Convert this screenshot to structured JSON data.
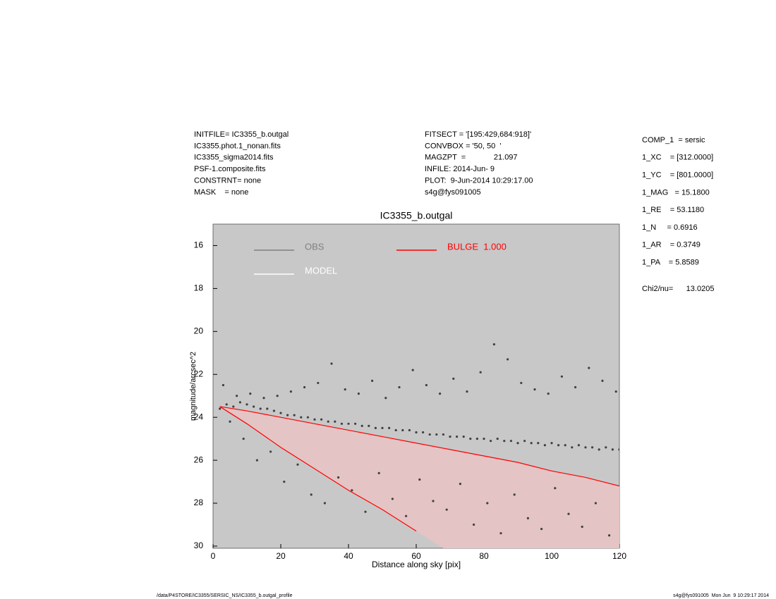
{
  "header": {
    "left": [
      "INITFILE= IC3355_b.outgal",
      "IC3355.phot.1_nonan.fits",
      "IC3355_sigma2014.fits",
      "PSF-1.composite.fits",
      "CONSTRNT= none",
      "MASK    = none"
    ],
    "middle": [
      "FITSECT = '[195:429,684:918]'",
      "CONVBOX = '50, 50  '",
      "MAGZPT  =             21.097",
      "INFILE: 2014-Jun- 9",
      "PLOT:  9-Jun-2014 10:29:17.00",
      "s4g@fys091005"
    ],
    "right": [
      "COMP_1  = sersic",
      "1_XC    = [312.0000]",
      "1_YC    = [801.0000]",
      "1_MAG   = 15.1800",
      "1_RE    = 53.1180",
      "1_N     = 0.6916",
      "1_AR    = 0.3749",
      "1_PA    = 5.8589"
    ],
    "chi": "Chi2/nu=      13.0205"
  },
  "footer": {
    "left": "/data/P4STORE/IC3355/SERSIC_NS/IC3355_b.outgal_profile",
    "right": "s4g@fys091005  Mon Jun  9 10:29:17 2014"
  },
  "chart_data": {
    "type": "scatter",
    "title": "IC3355_b.outgal",
    "xlabel": "Distance along sky [pix]",
    "ylabel": "magnitude/arcsec^2",
    "xlim": [
      0,
      120
    ],
    "xticks": [
      0,
      20,
      40,
      60,
      80,
      100,
      120
    ],
    "ylim": [
      15,
      30.1
    ],
    "y_inverted": true,
    "yticks": [
      16,
      18,
      20,
      22,
      24,
      26,
      28,
      30
    ],
    "background": "#c8c8c8",
    "legend": [
      {
        "name": "OBS",
        "color": "#808080"
      },
      {
        "name": "MODEL",
        "color": "#ffffff"
      },
      {
        "name": "BULGE  1.000",
        "color": "#ff0000"
      }
    ],
    "series": [
      {
        "color": "#404040",
        "x": [
          2,
          4,
          6,
          8,
          10,
          12,
          14,
          16,
          18,
          20,
          22,
          24,
          26,
          28,
          30,
          32,
          34,
          36,
          38,
          40,
          42,
          44,
          46,
          48,
          50,
          52,
          54,
          56,
          58,
          60,
          62,
          64,
          66,
          68,
          70,
          72,
          74,
          76,
          78,
          80,
          82,
          84,
          86,
          88,
          90,
          92,
          94,
          96,
          98,
          100,
          102,
          104,
          106,
          108,
          110,
          112,
          114,
          116,
          118,
          120,
          3,
          7,
          11,
          15,
          19,
          23,
          27,
          31,
          35,
          39,
          43,
          47,
          51,
          55,
          59,
          63,
          67,
          71,
          75,
          79,
          83,
          87,
          91,
          95,
          99,
          103,
          107,
          111,
          115,
          119,
          5,
          9,
          13,
          17,
          21,
          25,
          29,
          33,
          37,
          41,
          45,
          49,
          53,
          57,
          61,
          65,
          69,
          73,
          77,
          81,
          85,
          89,
          93,
          97,
          101,
          105,
          109,
          113,
          117
        ],
        "values": [
          23.6,
          23.4,
          23.5,
          23.3,
          23.4,
          23.5,
          23.6,
          23.6,
          23.7,
          23.8,
          23.9,
          23.9,
          24.0,
          24.0,
          24.1,
          24.1,
          24.2,
          24.2,
          24.3,
          24.3,
          24.3,
          24.4,
          24.4,
          24.5,
          24.5,
          24.5,
          24.6,
          24.6,
          24.6,
          24.7,
          24.7,
          24.8,
          24.8,
          24.8,
          24.9,
          24.9,
          24.9,
          25.0,
          25.0,
          25.0,
          25.1,
          25.0,
          25.1,
          25.1,
          25.2,
          25.1,
          25.2,
          25.2,
          25.3,
          25.2,
          25.3,
          25.3,
          25.4,
          25.3,
          25.4,
          25.4,
          25.5,
          25.4,
          25.5,
          25.5,
          22.5,
          23.0,
          22.9,
          23.1,
          23.0,
          22.8,
          22.6,
          22.4,
          21.5,
          22.7,
          22.9,
          22.3,
          23.1,
          22.6,
          21.8,
          22.5,
          22.9,
          22.2,
          22.8,
          21.9,
          20.6,
          21.3,
          22.4,
          22.7,
          22.9,
          22.1,
          22.6,
          21.7,
          22.3,
          22.8,
          24.2,
          25.0,
          26.0,
          25.6,
          27.0,
          26.2,
          27.6,
          28.0,
          26.8,
          27.4,
          28.4,
          26.6,
          27.8,
          28.6,
          26.9,
          27.9,
          28.3,
          27.1,
          29.0,
          28.0,
          29.4,
          27.6,
          28.7,
          29.2,
          27.3,
          28.5,
          29.1,
          28.0,
          29.5
        ]
      },
      {
        "color": "#ff0000",
        "fill": "#e4c4c4",
        "x": [
          2,
          10,
          20,
          30,
          40,
          50,
          60,
          70,
          80,
          90,
          100,
          110,
          120
        ],
        "values": [
          23.5,
          23.7,
          24.0,
          24.3,
          24.6,
          24.9,
          25.2,
          25.5,
          25.8,
          26.1,
          26.5,
          26.8,
          27.2
        ],
        "lower": [
          23.5,
          24.3,
          25.4,
          26.4,
          27.4,
          28.3,
          29.3,
          null,
          null,
          null,
          null,
          null,
          null
        ]
      }
    ]
  }
}
